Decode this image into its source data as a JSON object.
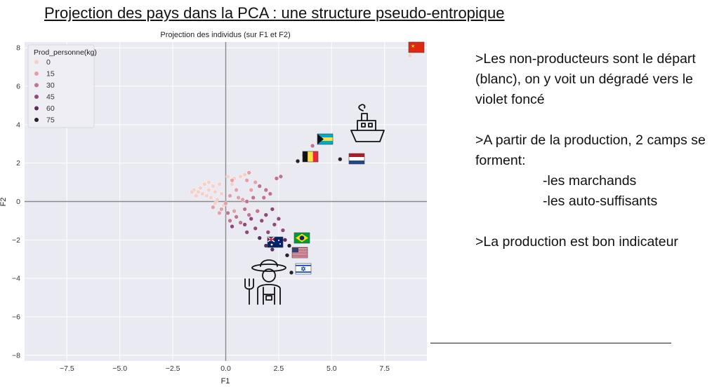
{
  "slide": {
    "title": "Projection des pays dans la PCA : une structure pseudo-entropique"
  },
  "notes": {
    "line1": ">Les non-producteurs sont le départ (blanc), on y voit un dégradé vers le violet foncé",
    "line2": ">A partir de la production, 2 camps se forment:",
    "item1": "-les marchands",
    "item2": "-les auto-suffisants",
    "line3": ">La production est bon indicateur"
  },
  "icons": [
    "ship-icon",
    "farmer-icon",
    "flag-china",
    "flag-bahamas",
    "flag-belgium",
    "flag-netherlands",
    "flag-brazil",
    "flag-australia",
    "flag-usa",
    "flag-israel"
  ],
  "chart_data": {
    "type": "scatter",
    "title": "Projection des individus (sur F1 et F2)",
    "xlabel": "F1",
    "ylabel": "F2",
    "xlim": [
      -9.5,
      9.5
    ],
    "ylim": [
      -8.3,
      8.3
    ],
    "xticks": [
      "−7.5",
      "−5.0",
      "−2.5",
      "0.0",
      "2.5",
      "5.0",
      "7.5"
    ],
    "yticks": [
      "−8",
      "−6",
      "−4",
      "−2",
      "0",
      "2",
      "4",
      "6",
      "8"
    ],
    "grid": true,
    "legend": {
      "title": "Prod_personne(kg)",
      "position": "top-left",
      "entries": [
        {
          "label": "0",
          "value": 0
        },
        {
          "label": "15",
          "value": 15
        },
        {
          "label": "30",
          "value": 30
        },
        {
          "label": "45",
          "value": 45
        },
        {
          "label": "60",
          "value": 60
        },
        {
          "label": "75",
          "value": 75
        }
      ]
    },
    "colors": [
      "#f6d0c6",
      "#e2a1a6",
      "#c07491",
      "#8e4a79",
      "#5c2c5a",
      "#2a1d2e"
    ],
    "points": [
      {
        "x": -1.5,
        "y": 0.6,
        "c": 0
      },
      {
        "x": -1.3,
        "y": 0.5,
        "c": 0
      },
      {
        "x": -1.1,
        "y": 0.4,
        "c": 0
      },
      {
        "x": -0.9,
        "y": 0.3,
        "c": 0
      },
      {
        "x": -1.2,
        "y": 0.7,
        "c": 0
      },
      {
        "x": -0.8,
        "y": 0.6,
        "c": 0
      },
      {
        "x": -0.7,
        "y": 0.2,
        "c": 0
      },
      {
        "x": -0.5,
        "y": 0.5,
        "c": 0
      },
      {
        "x": -1.0,
        "y": 0.9,
        "c": 0
      },
      {
        "x": -0.6,
        "y": 0.8,
        "c": 0
      },
      {
        "x": -0.4,
        "y": 0.1,
        "c": 0
      },
      {
        "x": -1.4,
        "y": 0.3,
        "c": 0
      },
      {
        "x": -0.3,
        "y": 0.9,
        "c": 0
      },
      {
        "x": -0.8,
        "y": 1.0,
        "c": 0
      },
      {
        "x": -0.2,
        "y": 0.4,
        "c": 0
      },
      {
        "x": 0.1,
        "y": 1.3,
        "c": 0
      },
      {
        "x": 0.4,
        "y": 1.2,
        "c": 0
      },
      {
        "x": 0.7,
        "y": 1.3,
        "c": 0
      },
      {
        "x": 0.9,
        "y": 1.4,
        "c": 0
      },
      {
        "x": -0.5,
        "y": -0.1,
        "c": 0
      },
      {
        "x": -0.1,
        "y": -0.2,
        "c": 0
      },
      {
        "x": -1.6,
        "y": 0.5,
        "c": 0
      },
      {
        "x": 0.3,
        "y": 0.9,
        "c": 0
      },
      {
        "x": -0.6,
        "y": -0.3,
        "c": 1
      },
      {
        "x": -0.2,
        "y": -0.4,
        "c": 1
      },
      {
        "x": 0.0,
        "y": -0.1,
        "c": 1
      },
      {
        "x": 0.2,
        "y": 0.3,
        "c": 1
      },
      {
        "x": 0.5,
        "y": 0.6,
        "c": 1
      },
      {
        "x": 1.0,
        "y": 1.1,
        "c": 1
      },
      {
        "x": 1.2,
        "y": 0.6,
        "c": 1
      },
      {
        "x": 0.8,
        "y": 0.1,
        "c": 1
      },
      {
        "x": -0.3,
        "y": -0.6,
        "c": 1
      },
      {
        "x": 0.4,
        "y": -0.5,
        "c": 1
      },
      {
        "x": 1.4,
        "y": 1.0,
        "c": 1
      },
      {
        "x": 0.3,
        "y": 1.1,
        "c": 1
      },
      {
        "x": 1.1,
        "y": 1.5,
        "c": 1
      },
      {
        "x": 0.6,
        "y": 0.2,
        "c": 1
      },
      {
        "x": 0.1,
        "y": -0.6,
        "c": 2
      },
      {
        "x": 0.5,
        "y": -0.8,
        "c": 2
      },
      {
        "x": 0.9,
        "y": -0.4,
        "c": 2
      },
      {
        "x": 1.3,
        "y": 0.2,
        "c": 2
      },
      {
        "x": 1.6,
        "y": 0.8,
        "c": 2
      },
      {
        "x": 1.9,
        "y": 0.6,
        "c": 2
      },
      {
        "x": 2.1,
        "y": 0.4,
        "c": 2
      },
      {
        "x": 0.2,
        "y": -1.0,
        "c": 2
      },
      {
        "x": 0.7,
        "y": -1.1,
        "c": 2
      },
      {
        "x": 1.1,
        "y": -0.7,
        "c": 2
      },
      {
        "x": 1.5,
        "y": -0.5,
        "c": 2
      },
      {
        "x": 1.8,
        "y": 0.2,
        "c": 2
      },
      {
        "x": 2.4,
        "y": 1.2,
        "c": 2
      },
      {
        "x": 2.6,
        "y": 1.3,
        "c": 2
      },
      {
        "x": 1.0,
        "y": 0.0,
        "c": 2
      },
      {
        "x": 0.3,
        "y": -1.3,
        "c": 3
      },
      {
        "x": 0.9,
        "y": -1.2,
        "c": 3
      },
      {
        "x": 1.4,
        "y": -1.4,
        "c": 3
      },
      {
        "x": 1.7,
        "y": -1.0,
        "c": 3
      },
      {
        "x": 2.0,
        "y": -1.6,
        "c": 3
      },
      {
        "x": 2.3,
        "y": -1.2,
        "c": 3
      },
      {
        "x": 2.5,
        "y": -0.9,
        "c": 3
      },
      {
        "x": 1.2,
        "y": -0.9,
        "c": 3
      },
      {
        "x": 1.9,
        "y": -0.7,
        "c": 3
      },
      {
        "x": 2.2,
        "y": -0.4,
        "c": 3
      },
      {
        "x": 1.0,
        "y": -1.6,
        "c": 3
      },
      {
        "x": 2.7,
        "y": -1.5,
        "c": 3
      },
      {
        "x": 1.6,
        "y": -1.9,
        "c": 4
      },
      {
        "x": 2.1,
        "y": -2.0,
        "c": 4
      },
      {
        "x": 2.5,
        "y": -2.2,
        "c": 4
      },
      {
        "x": 2.2,
        "y": -2.5,
        "c": 4
      },
      {
        "x": 1.9,
        "y": -2.3,
        "c": 4
      },
      {
        "x": 2.8,
        "y": -2.0,
        "c": 4
      },
      {
        "x": 3.0,
        "y": -2.3,
        "c": 5
      },
      {
        "x": 3.1,
        "y": -3.7,
        "c": 5
      },
      {
        "x": 2.9,
        "y": -2.8,
        "c": 5
      },
      {
        "x": 3.4,
        "y": 2.1,
        "c": 5
      },
      {
        "x": 5.4,
        "y": 2.2,
        "c": 5
      },
      {
        "x": 4.1,
        "y": 2.9,
        "c": 2
      },
      {
        "x": 3.7,
        "y": 2.4,
        "c": 3
      },
      {
        "x": 8.7,
        "y": 7.6,
        "c": 0
      }
    ]
  }
}
